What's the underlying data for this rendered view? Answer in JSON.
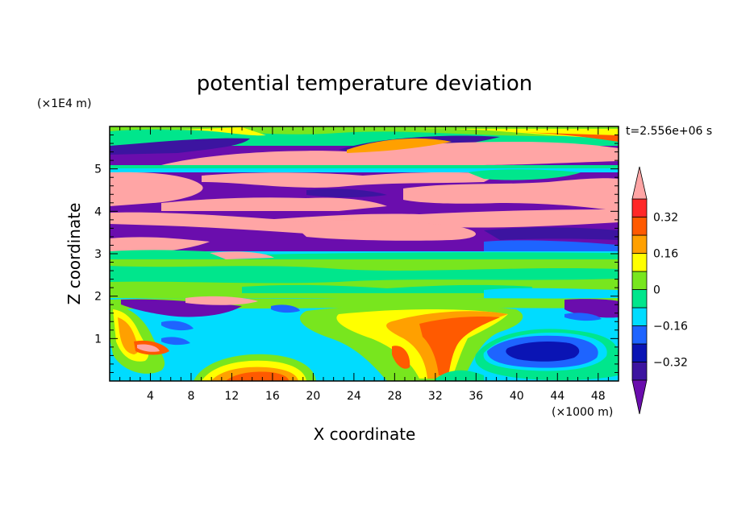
{
  "chart_data": {
    "type": "heatmap",
    "title": "potential temperature deviation",
    "xlabel": "X coordinate",
    "ylabel": "Z coordinate",
    "x_unit": "(×1000 m)",
    "y_unit": "(×1E4 m)",
    "time_label": "t=2.556e+06 s",
    "xlim": [
      0,
      50
    ],
    "ylim": [
      0,
      6
    ],
    "x_ticks": [
      4,
      8,
      12,
      16,
      20,
      24,
      28,
      32,
      36,
      40,
      44,
      48
    ],
    "y_ticks": [
      1,
      2,
      3,
      4,
      5
    ],
    "colorbar": {
      "levels": [
        -0.4,
        -0.32,
        -0.24,
        -0.16,
        -0.08,
        0,
        0.08,
        0.16,
        0.24,
        0.32,
        0.4
      ],
      "labels": [
        "0.32",
        "0.16",
        "0",
        "−0.16",
        "−0.32"
      ],
      "label_values": [
        0.32,
        0.16,
        0,
        -0.16,
        -0.32
      ],
      "colors": [
        "#6a0dad",
        "#3c14a0",
        "#0a14b4",
        "#1e64ff",
        "#00dcff",
        "#00e68c",
        "#78e61e",
        "#ffff00",
        "#ffa000",
        "#ff5a00",
        "#ff2828",
        "#ffa5a5"
      ],
      "extend": "both"
    }
  }
}
